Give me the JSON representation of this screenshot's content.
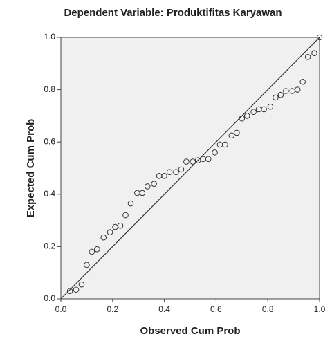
{
  "chart_data": {
    "type": "scatter",
    "title": "Dependent Variable: Produktifitas Karyawan",
    "x_label": "Observed Cum Prob",
    "y_label": "Expected Cum Prob",
    "x": [
      0.035,
      0.059,
      0.08,
      0.1,
      0.12,
      0.14,
      0.165,
      0.19,
      0.21,
      0.23,
      0.25,
      0.27,
      0.295,
      0.315,
      0.335,
      0.36,
      0.38,
      0.4,
      0.42,
      0.445,
      0.465,
      0.485,
      0.51,
      0.53,
      0.55,
      0.57,
      0.595,
      0.615,
      0.635,
      0.66,
      0.68,
      0.7,
      0.72,
      0.745,
      0.765,
      0.785,
      0.81,
      0.83,
      0.85,
      0.87,
      0.895,
      0.915,
      0.935,
      0.955,
      0.98,
      1.0
    ],
    "values": [
      0.03,
      0.035,
      0.055,
      0.13,
      0.18,
      0.19,
      0.235,
      0.255,
      0.275,
      0.28,
      0.32,
      0.365,
      0.405,
      0.405,
      0.43,
      0.44,
      0.47,
      0.47,
      0.485,
      0.485,
      0.495,
      0.525,
      0.525,
      0.53,
      0.535,
      0.535,
      0.56,
      0.59,
      0.59,
      0.625,
      0.635,
      0.69,
      0.7,
      0.715,
      0.725,
      0.725,
      0.735,
      0.77,
      0.78,
      0.795,
      0.795,
      0.8,
      0.83,
      0.925,
      0.94,
      1.0
    ],
    "xlim": [
      0,
      1
    ],
    "ylim": [
      0,
      1
    ],
    "xticks": [
      {
        "value": 0,
        "label": "0.0"
      },
      0.2,
      0.4,
      0.6,
      0.8,
      {
        "value": 1,
        "label": "1.0"
      }
    ],
    "yticks": [
      {
        "value": 0,
        "label": "0.0"
      },
      0.2,
      0.4,
      0.6,
      0.8,
      {
        "value": 1,
        "label": "1.0"
      }
    ],
    "reference_line": true,
    "marker_color": "#333333",
    "background": "#f0f0f0"
  }
}
